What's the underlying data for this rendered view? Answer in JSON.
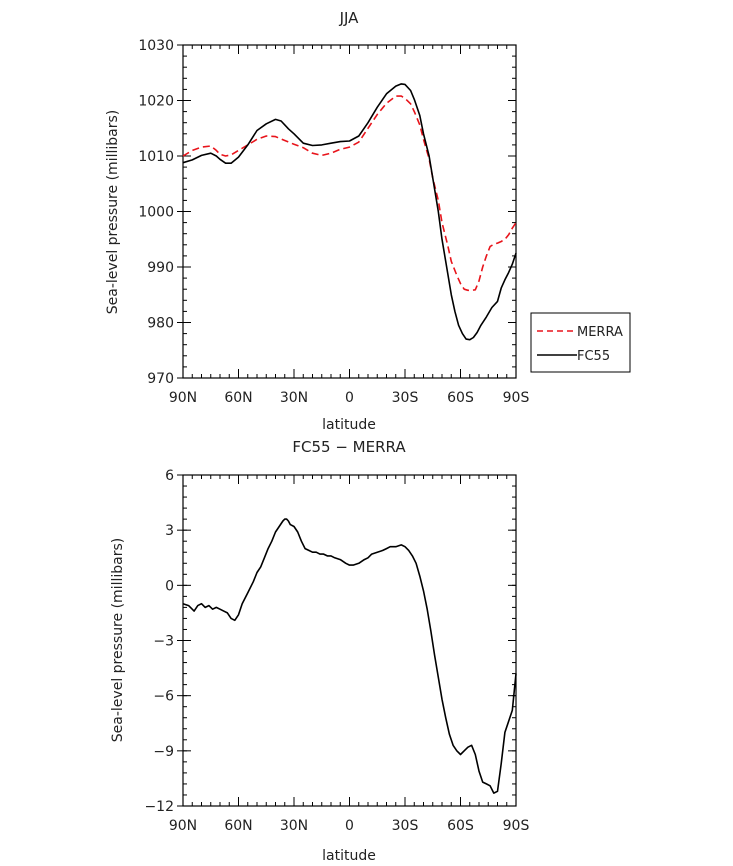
{
  "chart_data": [
    {
      "type": "line",
      "title": "JJA",
      "xlabel": "latitude",
      "ylabel": "Sea-level pressure (millibars)",
      "xlim": [
        90,
        -90
      ],
      "ylim": [
        970,
        1030
      ],
      "x_ticks": [
        90,
        60,
        30,
        0,
        -30,
        -60,
        -90
      ],
      "x_tick_labels": [
        "90N",
        "60N",
        "30N",
        "0",
        "30S",
        "60S",
        "90S"
      ],
      "y_ticks": [
        970,
        980,
        990,
        1000,
        1010,
        1020,
        1030
      ],
      "y_tick_labels": [
        "970",
        "980",
        "990",
        "1000",
        "1010",
        "1020",
        "1030"
      ],
      "legend_position": "outside-right",
      "series": [
        {
          "name": "MERRA",
          "color": "#e8141b",
          "dash": "dashed",
          "x": [
            90,
            85,
            80,
            75,
            72,
            70,
            67,
            64,
            60,
            55,
            50,
            45,
            40,
            35,
            30,
            25,
            20,
            15,
            10,
            5,
            0,
            -5,
            -10,
            -15,
            -20,
            -25,
            -28,
            -30,
            -33,
            -35,
            -38,
            -40,
            -43,
            -45,
            -48,
            -50,
            -53,
            -55,
            -58,
            -60,
            -62,
            -64,
            -66,
            -68,
            -70,
            -72,
            -74,
            -76,
            -78,
            -80,
            -82,
            -84,
            -86,
            -88,
            -90
          ],
          "y": [
            1010.0,
            1011.0,
            1011.6,
            1011.8,
            1011.0,
            1010.3,
            1010.0,
            1010.2,
            1011.0,
            1012.0,
            1013.0,
            1013.6,
            1013.5,
            1012.8,
            1012.1,
            1011.5,
            1010.5,
            1010.1,
            1010.5,
            1011.2,
            1011.6,
            1012.5,
            1015.0,
            1017.5,
            1019.5,
            1020.8,
            1020.8,
            1020.4,
            1019.4,
            1018.0,
            1015.6,
            1013.0,
            1009.5,
            1006.0,
            1002.0,
            998.0,
            994.0,
            991.0,
            988.5,
            987.0,
            986.0,
            985.8,
            985.8,
            985.9,
            987.5,
            990.0,
            992.0,
            993.7,
            994.1,
            994.3,
            994.6,
            995.0,
            995.8,
            997.0,
            998.0
          ]
        },
        {
          "name": "FC55",
          "color": "#000000",
          "dash": "solid",
          "x": [
            90,
            85,
            80,
            75,
            72,
            70,
            67,
            64,
            60,
            55,
            50,
            45,
            40,
            37,
            35,
            33,
            30,
            25,
            20,
            15,
            10,
            5,
            0,
            -5,
            -10,
            -15,
            -20,
            -25,
            -28,
            -30,
            -33,
            -35,
            -38,
            -40,
            -43,
            -45,
            -48,
            -50,
            -53,
            -55,
            -57,
            -59,
            -61,
            -63,
            -65,
            -67,
            -69,
            -71,
            -74,
            -77,
            -80,
            -82,
            -84,
            -86,
            -88,
            -90
          ],
          "y": [
            1008.8,
            1009.3,
            1010.1,
            1010.5,
            1010.0,
            1009.4,
            1008.7,
            1008.7,
            1009.8,
            1012.0,
            1014.6,
            1015.8,
            1016.6,
            1016.3,
            1015.6,
            1014.9,
            1014.0,
            1012.3,
            1011.9,
            1012.0,
            1012.3,
            1012.6,
            1012.7,
            1013.6,
            1016.0,
            1018.8,
            1021.2,
            1022.6,
            1023.0,
            1022.9,
            1021.8,
            1020.2,
            1017.3,
            1014.0,
            1010.0,
            1006.0,
            1000.0,
            995.0,
            989.0,
            985.0,
            982.0,
            979.5,
            978.0,
            977.0,
            976.9,
            977.3,
            978.2,
            979.5,
            981.0,
            982.7,
            983.8,
            986.2,
            987.7,
            989.0,
            990.5,
            992.5
          ]
        }
      ]
    },
    {
      "type": "line",
      "title": "FC55 − MERRA",
      "xlabel": "latitude",
      "ylabel": "Sea-level pressure (millibars)",
      "xlim": [
        90,
        -90
      ],
      "ylim": [
        -12,
        6
      ],
      "x_ticks": [
        90,
        60,
        30,
        0,
        -30,
        -60,
        -90
      ],
      "x_tick_labels": [
        "90N",
        "60N",
        "30N",
        "0",
        "30S",
        "60S",
        "90S"
      ],
      "y_ticks": [
        -12,
        -9,
        -6,
        -3,
        0,
        3,
        6
      ],
      "y_tick_labels": [
        "−12",
        "−9",
        "−6",
        "−3",
        "0",
        "3",
        "6"
      ],
      "series": [
        {
          "color": "#000000",
          "dash": "solid",
          "x": [
            90,
            87,
            84,
            82,
            80,
            78,
            76,
            74,
            72,
            70,
            68,
            66,
            64,
            62,
            60,
            58,
            55,
            52,
            50,
            48,
            46,
            44,
            42,
            40,
            38,
            36,
            35,
            34,
            33,
            32,
            30,
            28,
            26,
            24,
            22,
            20,
            18,
            16,
            14,
            12,
            10,
            8,
            5,
            2,
            0,
            -2,
            -5,
            -8,
            -10,
            -12,
            -15,
            -18,
            -20,
            -22,
            -25,
            -28,
            -30,
            -32,
            -34,
            -36,
            -38,
            -40,
            -42,
            -44,
            -46,
            -48,
            -50,
            -52,
            -54,
            -56,
            -58,
            -60,
            -62,
            -64,
            -66,
            -68,
            -70,
            -72,
            -74,
            -76,
            -78,
            -80,
            -82,
            -84,
            -86,
            -88,
            -90
          ],
          "y": [
            -1.0,
            -1.1,
            -1.4,
            -1.1,
            -1.0,
            -1.2,
            -1.1,
            -1.3,
            -1.2,
            -1.3,
            -1.4,
            -1.5,
            -1.8,
            -1.9,
            -1.6,
            -1.0,
            -0.4,
            0.2,
            0.7,
            1.0,
            1.5,
            2.0,
            2.4,
            2.9,
            3.2,
            3.5,
            3.6,
            3.6,
            3.5,
            3.3,
            3.2,
            2.9,
            2.4,
            2.0,
            1.9,
            1.8,
            1.8,
            1.7,
            1.7,
            1.6,
            1.6,
            1.5,
            1.4,
            1.2,
            1.1,
            1.1,
            1.2,
            1.4,
            1.5,
            1.7,
            1.8,
            1.9,
            2.0,
            2.1,
            2.1,
            2.2,
            2.1,
            1.9,
            1.6,
            1.2,
            0.5,
            -0.3,
            -1.3,
            -2.5,
            -3.8,
            -5.0,
            -6.2,
            -7.2,
            -8.1,
            -8.7,
            -9.0,
            -9.2,
            -9.0,
            -8.8,
            -8.7,
            -9.2,
            -10.1,
            -10.7,
            -10.8,
            -10.9,
            -11.3,
            -11.2,
            -9.7,
            -8.0,
            -7.4,
            -6.8,
            -4.8
          ]
        }
      ]
    }
  ]
}
